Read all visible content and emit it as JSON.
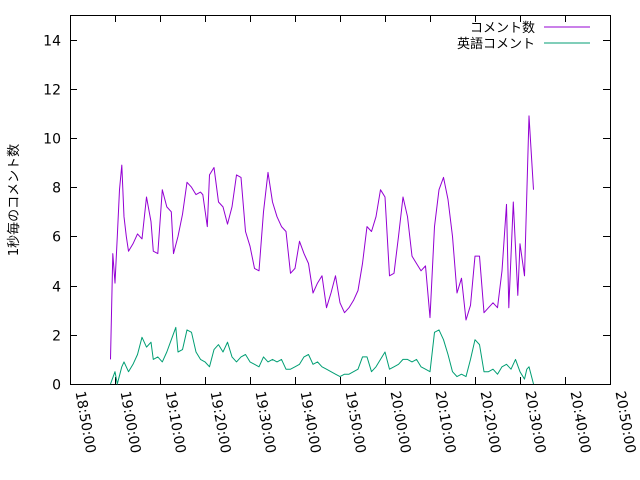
{
  "chart_data": {
    "type": "line",
    "title": "",
    "xlabel": "",
    "ylabel": "1秒毎のコメント数",
    "ylim": [
      0,
      15
    ],
    "yticks": [
      "0",
      "2",
      "4",
      "6",
      "8",
      "10",
      "12",
      "14"
    ],
    "xlim": [
      "18:50:00",
      "20:50:00"
    ],
    "xticks": [
      "18:50:00",
      "19:00:00",
      "19:10:00",
      "19:20:00",
      "19:30:00",
      "19:40:00",
      "19:50:00",
      "20:00:00",
      "20:10:00",
      "20:20:00",
      "20:30:00",
      "20:40:00",
      "20:50:00"
    ],
    "grid": false,
    "legend_position": "top-right",
    "series": [
      {
        "name": "コメント数",
        "color": "#9400d3",
        "points": [
          [
            "18:59:00",
            1.0
          ],
          [
            "18:59:30",
            5.3
          ],
          [
            "19:00:00",
            4.1
          ],
          [
            "19:00:30",
            6.0
          ],
          [
            "19:01:00",
            7.9
          ],
          [
            "19:01:30",
            8.9
          ],
          [
            "19:02:00",
            6.8
          ],
          [
            "19:02:30",
            6.0
          ],
          [
            "19:03:00",
            5.4
          ],
          [
            "19:04:00",
            5.7
          ],
          [
            "19:05:00",
            6.1
          ],
          [
            "19:06:00",
            5.9
          ],
          [
            "19:07:00",
            7.6
          ],
          [
            "19:08:00",
            6.6
          ],
          [
            "19:08:30",
            5.4
          ],
          [
            "19:09:30",
            5.3
          ],
          [
            "19:10:30",
            7.9
          ],
          [
            "19:11:30",
            7.2
          ],
          [
            "19:12:30",
            7.0
          ],
          [
            "19:13:00",
            5.3
          ],
          [
            "19:14:00",
            6.0
          ],
          [
            "19:15:00",
            6.9
          ],
          [
            "19:16:00",
            8.2
          ],
          [
            "19:17:00",
            8.0
          ],
          [
            "19:18:00",
            7.7
          ],
          [
            "19:19:00",
            7.8
          ],
          [
            "19:19:30",
            7.7
          ],
          [
            "19:20:30",
            6.4
          ],
          [
            "19:21:00",
            8.5
          ],
          [
            "19:22:00",
            8.8
          ],
          [
            "19:23:00",
            7.4
          ],
          [
            "19:24:00",
            7.2
          ],
          [
            "19:25:00",
            6.5
          ],
          [
            "19:26:00",
            7.2
          ],
          [
            "19:27:00",
            8.5
          ],
          [
            "19:28:00",
            8.4
          ],
          [
            "19:29:00",
            6.2
          ],
          [
            "19:30:00",
            5.6
          ],
          [
            "19:31:00",
            4.7
          ],
          [
            "19:32:00",
            4.6
          ],
          [
            "19:33:00",
            7.0
          ],
          [
            "19:34:00",
            8.6
          ],
          [
            "19:35:00",
            7.4
          ],
          [
            "19:36:00",
            6.8
          ],
          [
            "19:37:00",
            6.4
          ],
          [
            "19:38:00",
            6.2
          ],
          [
            "19:39:00",
            4.5
          ],
          [
            "19:40:00",
            4.7
          ],
          [
            "19:41:00",
            5.8
          ],
          [
            "19:42:00",
            5.3
          ],
          [
            "19:43:00",
            4.9
          ],
          [
            "19:44:00",
            3.7
          ],
          [
            "19:45:00",
            4.1
          ],
          [
            "19:46:00",
            4.4
          ],
          [
            "19:47:00",
            3.1
          ],
          [
            "19:48:00",
            3.7
          ],
          [
            "19:49:00",
            4.4
          ],
          [
            "19:50:00",
            3.3
          ],
          [
            "19:51:00",
            2.9
          ],
          [
            "19:52:00",
            3.1
          ],
          [
            "19:53:00",
            3.4
          ],
          [
            "19:54:00",
            3.8
          ],
          [
            "19:55:00",
            4.9
          ],
          [
            "19:56:00",
            6.4
          ],
          [
            "19:57:00",
            6.2
          ],
          [
            "19:58:00",
            6.8
          ],
          [
            "19:59:00",
            7.9
          ],
          [
            "20:00:00",
            7.6
          ],
          [
            "20:01:00",
            4.4
          ],
          [
            "20:02:00",
            4.5
          ],
          [
            "20:03:00",
            6.0
          ],
          [
            "20:04:00",
            7.6
          ],
          [
            "20:05:00",
            6.8
          ],
          [
            "20:06:00",
            5.2
          ],
          [
            "20:07:00",
            4.9
          ],
          [
            "20:08:00",
            4.6
          ],
          [
            "20:09:00",
            4.8
          ],
          [
            "20:10:00",
            2.7
          ],
          [
            "20:11:00",
            6.4
          ],
          [
            "20:12:00",
            7.9
          ],
          [
            "20:13:00",
            8.4
          ],
          [
            "20:14:00",
            7.5
          ],
          [
            "20:15:00",
            6.0
          ],
          [
            "20:16:00",
            3.7
          ],
          [
            "20:17:00",
            4.3
          ],
          [
            "20:18:00",
            2.6
          ],
          [
            "20:19:00",
            3.2
          ],
          [
            "20:20:00",
            5.2
          ],
          [
            "20:21:00",
            5.2
          ],
          [
            "20:22:00",
            2.9
          ],
          [
            "20:23:00",
            3.1
          ],
          [
            "20:24:00",
            3.3
          ],
          [
            "20:25:00",
            3.1
          ],
          [
            "20:26:00",
            4.6
          ],
          [
            "20:27:00",
            7.3
          ],
          [
            "20:27:30",
            3.1
          ],
          [
            "20:28:30",
            7.4
          ],
          [
            "20:29:30",
            3.6
          ],
          [
            "20:30:00",
            5.7
          ],
          [
            "20:31:00",
            4.4
          ],
          [
            "20:32:00",
            10.9
          ],
          [
            "20:33:00",
            7.9
          ]
        ]
      },
      {
        "name": "英語コメント",
        "color": "#009e73",
        "points": [
          [
            "18:59:00",
            0.0
          ],
          [
            "19:00:00",
            0.5
          ],
          [
            "19:00:30",
            0.0
          ],
          [
            "19:01:30",
            0.7
          ],
          [
            "19:02:00",
            0.9
          ],
          [
            "19:03:00",
            0.5
          ],
          [
            "19:04:00",
            0.8
          ],
          [
            "19:05:00",
            1.2
          ],
          [
            "19:06:00",
            1.9
          ],
          [
            "19:07:00",
            1.5
          ],
          [
            "19:08:00",
            1.7
          ],
          [
            "19:08:30",
            1.0
          ],
          [
            "19:09:30",
            1.1
          ],
          [
            "19:10:30",
            0.9
          ],
          [
            "19:11:30",
            1.3
          ],
          [
            "19:12:30",
            1.8
          ],
          [
            "19:13:30",
            2.3
          ],
          [
            "19:14:00",
            1.3
          ],
          [
            "19:15:00",
            1.4
          ],
          [
            "19:16:00",
            2.2
          ],
          [
            "19:17:00",
            2.1
          ],
          [
            "19:18:00",
            1.3
          ],
          [
            "19:19:00",
            1.0
          ],
          [
            "19:20:00",
            0.9
          ],
          [
            "19:21:00",
            0.7
          ],
          [
            "19:22:00",
            1.4
          ],
          [
            "19:23:00",
            1.6
          ],
          [
            "19:24:00",
            1.3
          ],
          [
            "19:25:00",
            1.7
          ],
          [
            "19:26:00",
            1.1
          ],
          [
            "19:27:00",
            0.9
          ],
          [
            "19:28:00",
            1.1
          ],
          [
            "19:29:00",
            1.2
          ],
          [
            "19:30:00",
            0.9
          ],
          [
            "19:31:00",
            0.8
          ],
          [
            "19:32:00",
            0.7
          ],
          [
            "19:33:00",
            1.1
          ],
          [
            "19:34:00",
            0.9
          ],
          [
            "19:35:00",
            1.0
          ],
          [
            "19:36:00",
            0.9
          ],
          [
            "19:37:00",
            1.0
          ],
          [
            "19:38:00",
            0.6
          ],
          [
            "19:39:00",
            0.6
          ],
          [
            "19:40:00",
            0.7
          ],
          [
            "19:41:00",
            0.8
          ],
          [
            "19:42:00",
            1.1
          ],
          [
            "19:43:00",
            1.2
          ],
          [
            "19:44:00",
            0.8
          ],
          [
            "19:45:00",
            0.9
          ],
          [
            "19:46:00",
            0.7
          ],
          [
            "19:47:00",
            0.6
          ],
          [
            "19:48:00",
            0.5
          ],
          [
            "19:49:00",
            0.4
          ],
          [
            "19:50:00",
            0.3
          ],
          [
            "19:51:00",
            0.4
          ],
          [
            "19:52:00",
            0.4
          ],
          [
            "19:53:00",
            0.5
          ],
          [
            "19:54:00",
            0.6
          ],
          [
            "19:55:00",
            1.1
          ],
          [
            "19:56:00",
            1.1
          ],
          [
            "19:57:00",
            0.5
          ],
          [
            "19:58:00",
            0.7
          ],
          [
            "19:59:00",
            1.0
          ],
          [
            "20:00:00",
            1.3
          ],
          [
            "20:01:00",
            0.6
          ],
          [
            "20:02:00",
            0.7
          ],
          [
            "20:03:00",
            0.8
          ],
          [
            "20:04:00",
            1.0
          ],
          [
            "20:05:00",
            1.0
          ],
          [
            "20:06:00",
            0.9
          ],
          [
            "20:07:00",
            1.0
          ],
          [
            "20:08:00",
            0.7
          ],
          [
            "20:09:00",
            0.6
          ],
          [
            "20:10:00",
            0.5
          ],
          [
            "20:11:00",
            2.1
          ],
          [
            "20:12:00",
            2.2
          ],
          [
            "20:13:00",
            1.8
          ],
          [
            "20:14:00",
            1.2
          ],
          [
            "20:15:00",
            0.5
          ],
          [
            "20:16:00",
            0.3
          ],
          [
            "20:17:00",
            0.4
          ],
          [
            "20:18:00",
            0.3
          ],
          [
            "20:19:00",
            1.0
          ],
          [
            "20:20:00",
            1.8
          ],
          [
            "20:21:00",
            1.6
          ],
          [
            "20:22:00",
            0.5
          ],
          [
            "20:23:00",
            0.5
          ],
          [
            "20:24:00",
            0.6
          ],
          [
            "20:25:00",
            0.4
          ],
          [
            "20:26:00",
            0.7
          ],
          [
            "20:27:00",
            0.8
          ],
          [
            "20:28:00",
            0.6
          ],
          [
            "20:29:00",
            1.0
          ],
          [
            "20:30:00",
            0.5
          ],
          [
            "20:31:00",
            0.2
          ],
          [
            "20:31:30",
            0.6
          ],
          [
            "20:32:00",
            0.7
          ],
          [
            "20:33:00",
            0.0
          ]
        ]
      }
    ]
  }
}
